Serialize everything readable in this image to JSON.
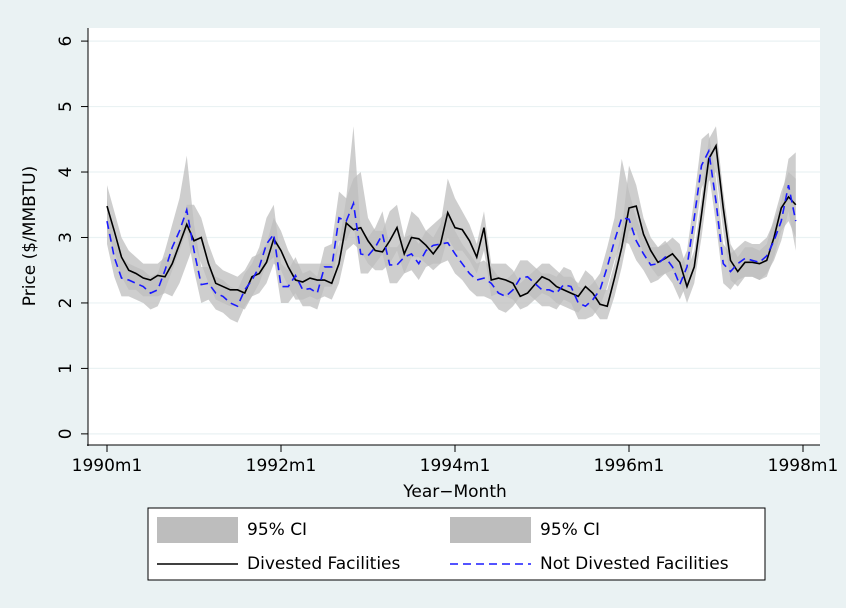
{
  "chart_data": {
    "type": "line",
    "ylabel": "Price ($/MMBTU)",
    "xlabel": "Year−Month",
    "grid": true,
    "legend": "bottom",
    "x": [
      "1990m1",
      "1990m2",
      "1990m3",
      "1990m4",
      "1990m5",
      "1990m6",
      "1990m7",
      "1990m8",
      "1990m9",
      "1990m10",
      "1990m11",
      "1990m12",
      "1991m1",
      "1991m2",
      "1991m3",
      "1991m4",
      "1991m5",
      "1991m6",
      "1991m7",
      "1991m8",
      "1991m9",
      "1991m10",
      "1991m11",
      "1991m12",
      "1992m1",
      "1992m2",
      "1992m3",
      "1992m4",
      "1992m5",
      "1992m6",
      "1992m7",
      "1992m8",
      "1992m9",
      "1992m10",
      "1992m11",
      "1992m12",
      "1993m1",
      "1993m2",
      "1993m3",
      "1993m4",
      "1993m5",
      "1993m6",
      "1993m7",
      "1993m8",
      "1993m9",
      "1993m10",
      "1993m11",
      "1993m12",
      "1994m1",
      "1994m2",
      "1994m3",
      "1994m4",
      "1994m5",
      "1994m6",
      "1994m7",
      "1994m8",
      "1994m9",
      "1994m10",
      "1994m11",
      "1994m12",
      "1995m1",
      "1995m2",
      "1995m3",
      "1995m4",
      "1995m5",
      "1995m6",
      "1995m7",
      "1995m8",
      "1995m9",
      "1995m10",
      "1995m11",
      "1995m12",
      "1996m1",
      "1996m2",
      "1996m3",
      "1996m4",
      "1996m5",
      "1996m6",
      "1996m7",
      "1996m8",
      "1996m9",
      "1996m10",
      "1996m11",
      "1996m12",
      "1997m1",
      "1997m2",
      "1997m3",
      "1997m4",
      "1997m5",
      "1997m6",
      "1997m7",
      "1997m8",
      "1997m9",
      "1997m10",
      "1997m11",
      "1997m12"
    ],
    "xticks": [
      "1990m1",
      "1992m1",
      "1994m1",
      "1996m1",
      "1998m1"
    ],
    "ylim": [
      -0.17,
      6.2
    ],
    "yticks": [
      0,
      1,
      2,
      3,
      4,
      5,
      6
    ],
    "series": [
      {
        "name": "95% CI",
        "kind": "band",
        "color": "#bdbdbd",
        "upper": [
          3.8,
          3.4,
          3.0,
          2.8,
          2.7,
          2.6,
          2.6,
          2.6,
          2.7,
          2.7,
          3.0,
          3.5,
          3.5,
          3.3,
          2.9,
          2.6,
          2.5,
          2.45,
          2.4,
          2.5,
          2.7,
          2.75,
          2.9,
          3.3,
          3.1,
          2.8,
          2.6,
          2.6,
          2.6,
          2.6,
          2.6,
          2.6,
          2.9,
          3.6,
          3.9,
          4.0,
          3.3,
          3.1,
          3.1,
          3.4,
          3.5,
          3.0,
          3.4,
          3.3,
          3.1,
          3.0,
          3.2,
          3.9,
          3.6,
          3.4,
          3.2,
          2.9,
          3.4,
          2.6,
          2.6,
          2.6,
          2.5,
          2.3,
          2.4,
          2.5,
          2.6,
          2.6,
          2.5,
          2.4,
          2.4,
          2.3,
          2.5,
          2.4,
          2.2,
          2.2,
          2.6,
          3.1,
          4.1,
          3.8,
          3.3,
          3.0,
          2.85,
          2.9,
          3.0,
          2.9,
          2.5,
          2.8,
          3.6,
          4.5,
          4.7,
          3.7,
          2.9,
          2.7,
          2.85,
          2.85,
          2.8,
          2.9,
          3.3,
          3.7,
          4.0,
          3.9
        ],
        "lower": [
          3.1,
          2.8,
          2.4,
          2.2,
          2.2,
          2.1,
          2.1,
          2.1,
          2.15,
          2.1,
          2.3,
          2.6,
          2.9,
          2.6,
          2.3,
          2.05,
          2.0,
          1.95,
          1.95,
          1.9,
          2.1,
          2.15,
          2.3,
          2.6,
          2.5,
          2.25,
          2.05,
          2.05,
          2.1,
          2.05,
          2.1,
          2.05,
          2.3,
          2.8,
          2.9,
          2.8,
          2.6,
          2.5,
          2.5,
          2.6,
          2.8,
          2.45,
          2.7,
          2.7,
          2.6,
          2.5,
          2.6,
          3.0,
          2.8,
          2.8,
          2.65,
          2.45,
          2.8,
          2.1,
          2.15,
          2.1,
          2.05,
          1.9,
          1.95,
          2.05,
          2.15,
          2.1,
          2.0,
          1.95,
          1.9,
          1.85,
          2.0,
          1.9,
          1.75,
          1.75,
          2.1,
          2.55,
          3.1,
          3.1,
          2.75,
          2.55,
          2.4,
          2.45,
          2.5,
          2.35,
          2.0,
          2.3,
          3.0,
          3.85,
          4.0,
          3.1,
          2.35,
          2.25,
          2.4,
          2.4,
          2.35,
          2.4,
          2.7,
          3.1,
          3.25,
          3.0
        ]
      },
      {
        "name": "95% CI",
        "kind": "band",
        "color": "#bdbdbd",
        "upper": [
          3.6,
          3.0,
          2.7,
          2.6,
          2.55,
          2.5,
          2.4,
          2.45,
          2.8,
          3.2,
          3.6,
          4.25,
          3.2,
          2.55,
          2.55,
          2.4,
          2.35,
          2.25,
          2.2,
          2.45,
          2.6,
          2.85,
          3.3,
          3.5,
          2.6,
          2.5,
          2.7,
          2.45,
          2.5,
          2.4,
          2.85,
          2.9,
          3.7,
          3.6,
          4.7,
          3.1,
          3.0,
          3.15,
          3.4,
          2.85,
          2.85,
          3.0,
          3.05,
          2.9,
          3.1,
          3.2,
          3.3,
          3.4,
          3.1,
          2.9,
          2.75,
          2.6,
          2.65,
          2.55,
          2.4,
          2.35,
          2.45,
          2.65,
          2.65,
          2.55,
          2.45,
          2.45,
          2.4,
          2.55,
          2.5,
          2.25,
          2.2,
          2.3,
          2.45,
          2.85,
          3.3,
          4.2,
          3.7,
          3.3,
          3.0,
          2.85,
          2.85,
          2.95,
          2.8,
          2.55,
          2.8,
          3.6,
          4.5,
          4.6,
          3.9,
          2.9,
          2.75,
          2.85,
          2.95,
          2.9,
          2.9,
          3.0,
          3.25,
          3.55,
          4.2,
          4.3
        ],
        "lower": [
          2.9,
          2.4,
          2.1,
          2.1,
          2.05,
          2.0,
          1.9,
          1.95,
          2.2,
          2.5,
          2.8,
          3.1,
          2.5,
          2.0,
          2.05,
          1.9,
          1.85,
          1.75,
          1.7,
          1.95,
          2.1,
          2.3,
          2.6,
          2.7,
          2.0,
          2.0,
          2.15,
          1.95,
          1.95,
          1.9,
          2.25,
          2.25,
          2.95,
          2.95,
          3.2,
          2.45,
          2.45,
          2.6,
          2.75,
          2.3,
          2.3,
          2.45,
          2.5,
          2.35,
          2.55,
          2.6,
          2.6,
          2.65,
          2.45,
          2.35,
          2.2,
          2.1,
          2.1,
          2.05,
          1.9,
          1.85,
          1.95,
          2.1,
          2.15,
          2.05,
          1.95,
          1.95,
          1.9,
          2.05,
          2.0,
          1.75,
          1.75,
          1.8,
          1.95,
          2.25,
          2.65,
          2.95,
          2.9,
          2.65,
          2.5,
          2.3,
          2.35,
          2.45,
          2.3,
          2.05,
          2.3,
          3.0,
          3.75,
          4.0,
          3.2,
          2.3,
          2.2,
          2.35,
          2.4,
          2.4,
          2.35,
          2.45,
          2.65,
          2.95,
          3.4,
          2.8
        ]
      },
      {
        "name": "Divested Facilities",
        "kind": "line",
        "color": "#000000",
        "dash": false,
        "values": [
          3.48,
          3.1,
          2.7,
          2.5,
          2.45,
          2.38,
          2.35,
          2.42,
          2.4,
          2.6,
          2.9,
          3.2,
          2.95,
          3.0,
          2.6,
          2.3,
          2.25,
          2.2,
          2.2,
          2.15,
          2.4,
          2.45,
          2.62,
          2.98,
          2.8,
          2.55,
          2.35,
          2.32,
          2.38,
          2.35,
          2.35,
          2.3,
          2.6,
          3.22,
          3.12,
          3.15,
          2.95,
          2.8,
          2.78,
          2.95,
          3.15,
          2.75,
          3.0,
          2.98,
          2.88,
          2.75,
          2.9,
          3.38,
          3.15,
          3.12,
          2.95,
          2.7,
          3.15,
          2.35,
          2.38,
          2.35,
          2.3,
          2.1,
          2.15,
          2.28,
          2.4,
          2.35,
          2.25,
          2.2,
          2.15,
          2.1,
          2.25,
          2.15,
          1.98,
          1.95,
          2.38,
          2.85,
          3.45,
          3.48,
          3.05,
          2.8,
          2.62,
          2.68,
          2.75,
          2.62,
          2.25,
          2.55,
          3.35,
          4.2,
          4.4,
          3.45,
          2.65,
          2.48,
          2.62,
          2.62,
          2.6,
          2.65,
          3.0,
          3.45,
          3.62,
          3.5
        ]
      },
      {
        "name": "Not Divested Facilities",
        "kind": "line",
        "color": "#1a1aff",
        "dash": true,
        "values": [
          3.25,
          2.7,
          2.38,
          2.35,
          2.3,
          2.25,
          2.15,
          2.2,
          2.5,
          2.85,
          3.1,
          3.42,
          2.8,
          2.28,
          2.3,
          2.15,
          2.1,
          2.0,
          1.95,
          2.2,
          2.35,
          2.55,
          2.9,
          3.05,
          2.25,
          2.25,
          2.42,
          2.2,
          2.22,
          2.15,
          2.55,
          2.55,
          3.3,
          3.25,
          3.52,
          2.75,
          2.72,
          2.85,
          3.05,
          2.58,
          2.58,
          2.7,
          2.75,
          2.6,
          2.8,
          2.88,
          2.9,
          2.92,
          2.75,
          2.6,
          2.45,
          2.35,
          2.38,
          2.3,
          2.15,
          2.1,
          2.2,
          2.38,
          2.4,
          2.3,
          2.2,
          2.2,
          2.15,
          2.28,
          2.25,
          2.0,
          1.95,
          2.05,
          2.2,
          2.55,
          2.95,
          3.3,
          3.28,
          2.95,
          2.75,
          2.58,
          2.6,
          2.7,
          2.55,
          2.28,
          2.55,
          3.3,
          4.1,
          4.32,
          3.55,
          2.6,
          2.48,
          2.6,
          2.68,
          2.65,
          2.62,
          2.72,
          2.95,
          3.25,
          3.8,
          3.25
        ]
      }
    ]
  }
}
